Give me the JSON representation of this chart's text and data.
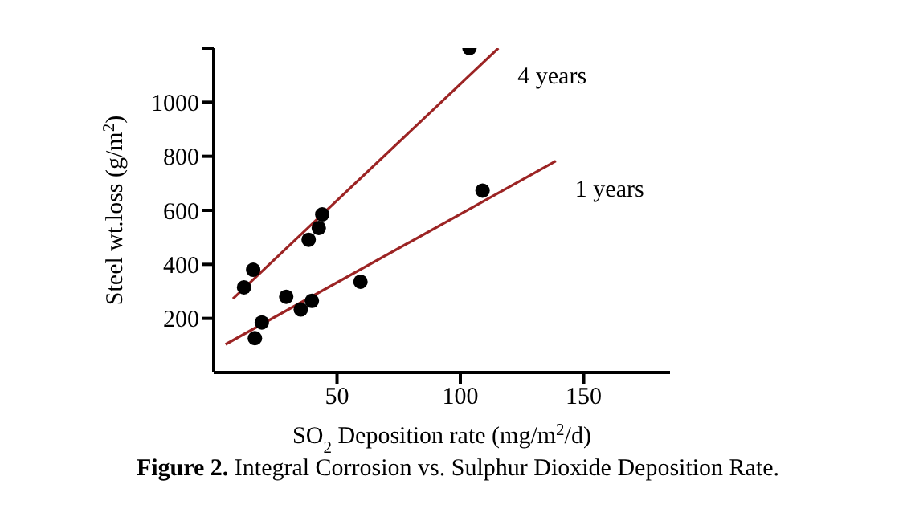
{
  "chart_data": {
    "type": "scatter",
    "title": "Figure 2. Integral Corrosion vs. Sulphur Dioxide Deposition Rate.",
    "xlabel": "SO$_{2}$ Deposition rate (mg/m$^{2}$/d)",
    "ylabel": "Steel wt.loss (g/m$^{2}$)",
    "xlim": [
      0,
      185
    ],
    "xticks": [
      50,
      100,
      150
    ],
    "ylim": [
      0,
      1200
    ],
    "yticks": [
      200,
      400,
      600,
      800,
      1000,
      {
        "value": 1200,
        "label": null
      }
    ],
    "grid": false,
    "legend": false,
    "series": [
      {
        "marker": "circle",
        "color": "#000000",
        "x": [
          12.3,
          16,
          38.5,
          42.6,
          44,
          103.7
        ],
        "values": [
          315,
          380,
          491,
          535,
          585,
          1200
        ]
      },
      {
        "marker": "circle",
        "color": "#000000",
        "x": [
          16.7,
          19.5,
          29.4,
          35.3,
          39.8,
          59.5,
          109
        ],
        "values": [
          127,
          185,
          280,
          233,
          265,
          336,
          673
        ]
      },
      {
        "type": "line",
        "name": "4 years",
        "marker": "none",
        "color": "#9c2424",
        "x": [
          7.8,
          115.4
        ],
        "values": [
          273,
          1200
        ]
      },
      {
        "type": "line",
        "name": "1 years",
        "marker": "none",
        "color": "#9c2424",
        "x": [
          4.8,
          138.7
        ],
        "values": [
          104,
          782
        ]
      }
    ]
  }
}
